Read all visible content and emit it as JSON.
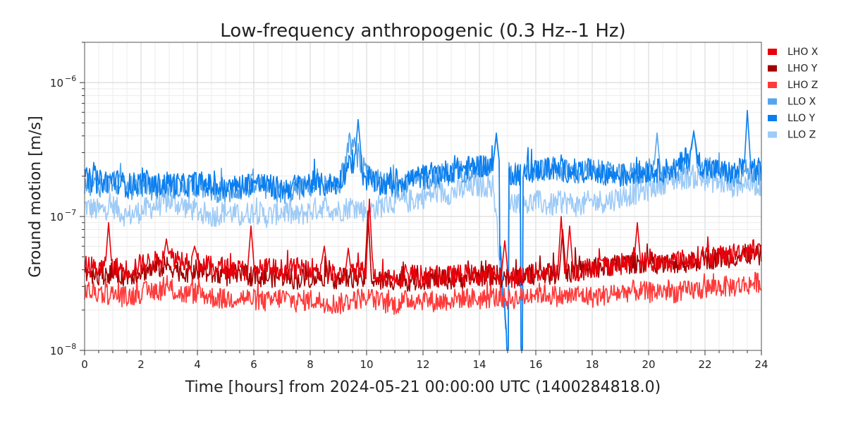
{
  "chart_data": {
    "type": "line",
    "title": "Low-frequency anthropogenic (0.3 Hz--1 Hz)",
    "xlabel": "Time [hours] from 2024-05-21 00:00:00 UTC (1400284818.0)",
    "ylabel": "Ground motion [m/s]",
    "xlim": [
      0,
      24
    ],
    "ylim": [
      1e-08,
      2e-06
    ],
    "yscale": "log",
    "x_ticks": [
      0,
      2,
      4,
      6,
      8,
      10,
      12,
      14,
      16,
      18,
      20,
      22,
      24
    ],
    "x_tick_labels": [
      "0",
      "2",
      "4",
      "6",
      "8",
      "10",
      "12",
      "14",
      "16",
      "18",
      "20",
      "22",
      "24"
    ],
    "y_ticks": [
      {
        "value": 1e-08,
        "mant": "10",
        "exp": "−8"
      },
      {
        "value": 1e-07,
        "mant": "10",
        "exp": "−7"
      },
      {
        "value": 1e-06,
        "mant": "10",
        "exp": "−6"
      }
    ],
    "grid": true,
    "legend_position": "right",
    "x": [
      0,
      0.5,
      1,
      1.5,
      2,
      2.5,
      3,
      3.5,
      4,
      4.5,
      5,
      5.5,
      6,
      6.5,
      7,
      7.5,
      8,
      8.5,
      9,
      9.5,
      10,
      10.5,
      11,
      11.5,
      12,
      12.5,
      13,
      13.5,
      14,
      14.5,
      15,
      15.5,
      16,
      16.5,
      17,
      17.5,
      18,
      18.5,
      19,
      19.5,
      20,
      20.5,
      21,
      21.5,
      22,
      22.5,
      23,
      23.5,
      24
    ],
    "series": [
      {
        "name": "LHO X",
        "color": "#e8000b",
        "values": [
          4.3e-08,
          4.1e-08,
          4.2e-08,
          4e-08,
          4.4e-08,
          4.6e-08,
          5e-08,
          4.8e-08,
          4.5e-08,
          4.2e-08,
          4.1e-08,
          4e-08,
          3.9e-08,
          4.1e-08,
          4e-08,
          4.1e-08,
          4.2e-08,
          3.8e-08,
          3.6e-08,
          3.7e-08,
          4e-08,
          3.6e-08,
          3.5e-08,
          3.7e-08,
          3.6e-08,
          3.5e-08,
          3.6e-08,
          3.7e-08,
          3.6e-08,
          3.7e-08,
          3.4e-08,
          3.6e-08,
          3.8e-08,
          3.9e-08,
          4e-08,
          3.9e-08,
          4.2e-08,
          4.3e-08,
          4.4e-08,
          4.5e-08,
          4.6e-08,
          4.4e-08,
          4.7e-08,
          4.8e-08,
          5.2e-08,
          5e-08,
          5.3e-08,
          5.6e-08,
          5.8e-08
        ]
      },
      {
        "name": "LHO Y",
        "color": "#a20000",
        "values": [
          3.9e-08,
          3.7e-08,
          3.8e-08,
          3.6e-08,
          3.9e-08,
          4.1e-08,
          4.3e-08,
          3.8e-08,
          4e-08,
          3.7e-08,
          3.6e-08,
          3.7e-08,
          3.6e-08,
          3.5e-08,
          3.6e-08,
          3.4e-08,
          3.5e-08,
          3.6e-08,
          3.4e-08,
          3.5e-08,
          3.4e-08,
          3.3e-08,
          3.4e-08,
          3.3e-08,
          3.4e-08,
          3.5e-08,
          3.4e-08,
          3.5e-08,
          3.6e-08,
          3.7e-08,
          3.4e-08,
          3.6e-08,
          3.7e-08,
          3.7e-08,
          3.8e-08,
          3.9e-08,
          4.1e-08,
          4.2e-08,
          4.4e-08,
          4.5e-08,
          4.6e-08,
          4.4e-08,
          4.5e-08,
          4.6e-08,
          4.8e-08,
          4.9e-08,
          5e-08,
          5.2e-08,
          5.1e-08
        ]
      },
      {
        "name": "LHO Z",
        "color": "#ff3b3b",
        "values": [
          2.8e-08,
          2.7e-08,
          2.6e-08,
          2.5e-08,
          2.7e-08,
          2.8e-08,
          2.9e-08,
          2.6e-08,
          2.7e-08,
          2.5e-08,
          2.4e-08,
          2.5e-08,
          2.4e-08,
          2.3e-08,
          2.5e-08,
          2.3e-08,
          2.4e-08,
          2.3e-08,
          2.2e-08,
          2.4e-08,
          2.5e-08,
          2.3e-08,
          2.2e-08,
          2.4e-08,
          2.4e-08,
          2.3e-08,
          2.4e-08,
          2.5e-08,
          2.4e-08,
          2.5e-08,
          2.4e-08,
          2.5e-08,
          2.7e-08,
          2.6e-08,
          2.5e-08,
          2.6e-08,
          2.5e-08,
          2.6e-08,
          2.7e-08,
          2.8e-08,
          2.7e-08,
          2.8e-08,
          2.7e-08,
          2.8e-08,
          2.9e-08,
          3e-08,
          3e-08,
          3.1e-08,
          3.3e-08
        ]
      },
      {
        "name": "LLO X",
        "color": "#56a5ec",
        "values": [
          1.8e-07,
          1.7e-07,
          1.8e-07,
          1.6e-07,
          1.7e-07,
          1.6e-07,
          1.7e-07,
          1.6e-07,
          1.7e-07,
          1.6e-07,
          1.5e-07,
          1.6e-07,
          1.7e-07,
          1.6e-07,
          1.5e-07,
          1.6e-07,
          1.7e-07,
          1.6e-07,
          1.7e-07,
          3.5e-07,
          2e-07,
          1.8e-07,
          1.7e-07,
          1.8e-07,
          1.9e-07,
          2e-07,
          2.1e-07,
          2.2e-07,
          2.3e-07,
          2.4e-07,
          1e-08,
          2e-07,
          2.2e-07,
          2.3e-07,
          2.2e-07,
          2.1e-07,
          2.2e-07,
          2.1e-07,
          2e-07,
          2.1e-07,
          2.2e-07,
          2.1e-07,
          2.2e-07,
          2.6e-07,
          2.3e-07,
          2.2e-07,
          2e-07,
          2.2e-07,
          2.1e-07
        ]
      },
      {
        "name": "LLO Y",
        "color": "#0a7ef0",
        "values": [
          1.9e-07,
          1.8e-07,
          1.9e-07,
          1.7e-07,
          1.8e-07,
          1.7e-07,
          1.8e-07,
          1.7e-07,
          1.8e-07,
          1.7e-07,
          1.6e-07,
          1.7e-07,
          1.8e-07,
          1.7e-07,
          1.6e-07,
          1.7e-07,
          1.8e-07,
          1.7e-07,
          1.8e-07,
          2.6e-07,
          1.9e-07,
          1.7e-07,
          1.8e-07,
          1.9e-07,
          2e-07,
          2.1e-07,
          2.2e-07,
          2.3e-07,
          2.4e-07,
          2.4e-07,
          1e-08,
          2.1e-07,
          2.2e-07,
          2.3e-07,
          2.2e-07,
          2.2e-07,
          2.2e-07,
          2.1e-07,
          2e-07,
          2.1e-07,
          2.2e-07,
          2.2e-07,
          2.3e-07,
          3e-07,
          2.3e-07,
          2.2e-07,
          2.1e-07,
          2.4e-07,
          2.2e-07
        ]
      },
      {
        "name": "LLO Z",
        "color": "#9ecbf7",
        "values": [
          1.2e-07,
          1.1e-07,
          1.2e-07,
          1e-07,
          1.1e-07,
          1.2e-07,
          1.3e-07,
          1.2e-07,
          1.1e-07,
          1e-07,
          1.1e-07,
          1e-07,
          1.1e-07,
          1e-07,
          1.1e-07,
          1e-07,
          1.1e-07,
          1.2e-07,
          1.1e-07,
          1.2e-07,
          1.1e-07,
          1.2e-07,
          1.3e-07,
          1.3e-07,
          1.4e-07,
          1.5e-07,
          1.5e-07,
          1.6e-07,
          1.7e-07,
          1.7e-07,
          1e-08,
          1.2e-07,
          1.3e-07,
          1.2e-07,
          1.3e-07,
          1.2e-07,
          1.3e-07,
          1.3e-07,
          1.4e-07,
          1.5e-07,
          1.6e-07,
          1.8e-07,
          1.9e-07,
          2e-07,
          1.9e-07,
          1.8e-07,
          1.7e-07,
          1.8e-07,
          1.7e-07
        ]
      }
    ],
    "spikes": [
      {
        "series": 0,
        "x": 0.85,
        "y": 9e-08
      },
      {
        "series": 0,
        "x": 2.9,
        "y": 6.8e-08
      },
      {
        "series": 0,
        "x": 3.9,
        "y": 6e-08
      },
      {
        "series": 0,
        "x": 5.9,
        "y": 8.5e-08
      },
      {
        "series": 0,
        "x": 8.5,
        "y": 6e-08
      },
      {
        "series": 0,
        "x": 9.35,
        "y": 5.8e-08
      },
      {
        "series": 0,
        "x": 10.1,
        "y": 1.35e-07
      },
      {
        "series": 0,
        "x": 14.9,
        "y": 6.6e-08
      },
      {
        "series": 0,
        "x": 16.9,
        "y": 1e-07
      },
      {
        "series": 0,
        "x": 17.2,
        "y": 8.5e-08
      },
      {
        "series": 0,
        "x": 19.6,
        "y": 9e-08
      },
      {
        "series": 1,
        "x": 10.05,
        "y": 1.1e-07
      },
      {
        "series": 1,
        "x": 16.95,
        "y": 8e-08
      },
      {
        "series": 3,
        "x": 9.4,
        "y": 4.2e-07
      },
      {
        "series": 3,
        "x": 14.6,
        "y": 4e-07
      },
      {
        "series": 3,
        "x": 20.3,
        "y": 4.2e-07
      },
      {
        "series": 3,
        "x": 21.6,
        "y": 4.4e-07
      },
      {
        "series": 4,
        "x": 9.7,
        "y": 5.3e-07
      },
      {
        "series": 4,
        "x": 23.5,
        "y": 6.2e-07
      },
      {
        "series": 4,
        "x": 21.6,
        "y": 4.3e-07
      },
      {
        "series": 4,
        "x": 14.6,
        "y": 4.2e-07
      }
    ]
  }
}
